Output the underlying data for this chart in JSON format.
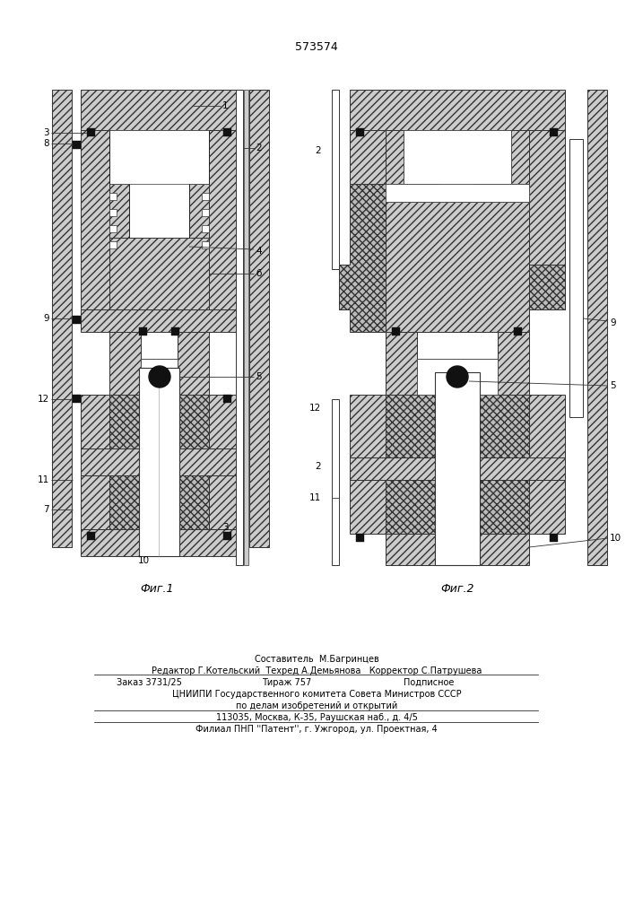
{
  "title": "573574",
  "fig1_label": "Фиг.1",
  "fig2_label": "Фиг.2",
  "background": "#ffffff",
  "footer_lines": [
    "Составитель  М.Багринцев",
    "Редактор Г.Котельский  Техред А.Демьянова   Корректор С.Патрушева",
    "ЦНИИПИ Государственного комитета Совета Министров СССР",
    "по делам изобретений и открытий",
    "113035, Москва, К-35, Раушская наб., д. 4/5",
    "Филиал ПНП ''Патент'', г. Ужгород, ул. Проектная, 4"
  ],
  "fig_width": 7.07,
  "fig_height": 10.0
}
